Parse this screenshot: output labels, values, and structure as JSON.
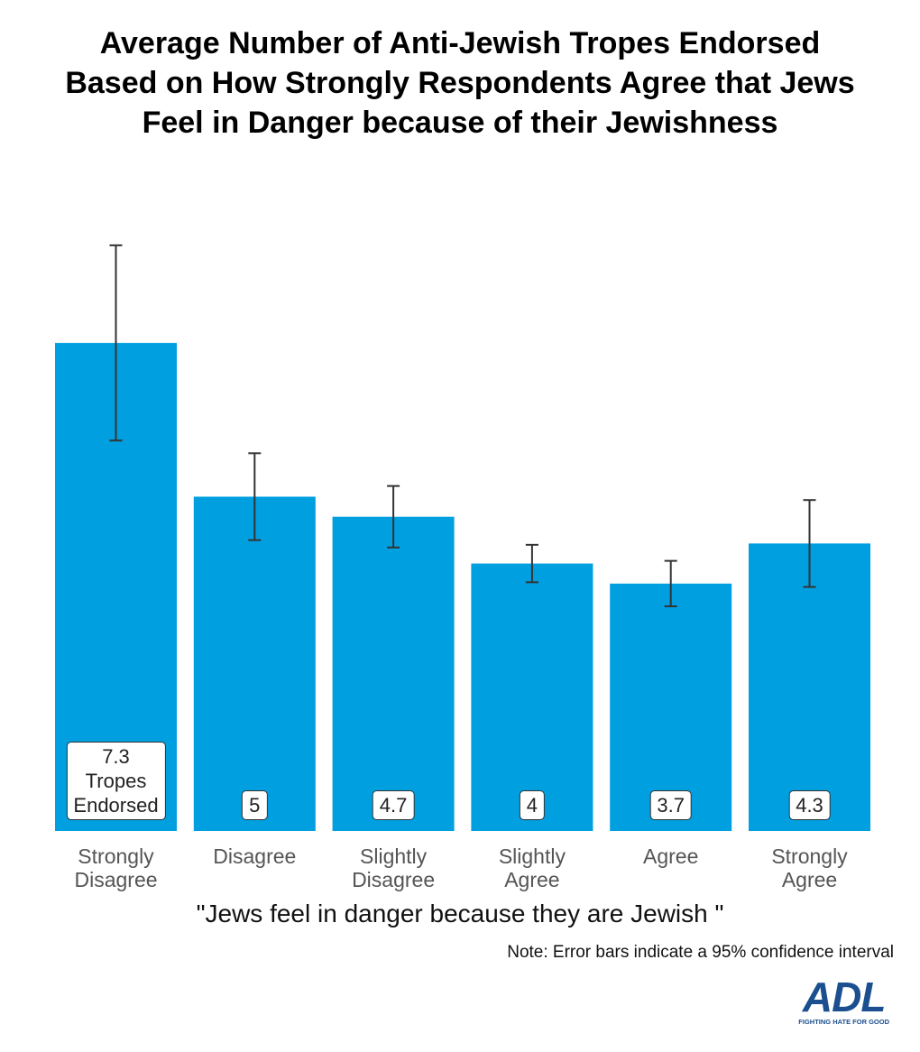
{
  "chart_data": {
    "type": "bar",
    "title": "Average Number of Anti-Jewish Tropes Endorsed Based on How Strongly Respondents Agree that Jews Feel in Danger because of their Jewishness",
    "categories": [
      "Strongly Disagree",
      "Disagree",
      "Slightly Disagree",
      "Slightly Agree",
      "Agree",
      "Strongly Agree"
    ],
    "values": [
      7.3,
      5,
      4.7,
      4,
      3.7,
      4.3
    ],
    "value_labels": [
      "7.3 Tropes Endorsed",
      "5",
      "4.7",
      "4",
      "3.7",
      "4.3"
    ],
    "errors": [
      1.46,
      0.65,
      0.46,
      0.28,
      0.34,
      0.65
    ],
    "color": "#009fe0",
    "ylim": [
      0,
      10
    ],
    "x_label": "\"Jews feel in danger because they are Jewish \"",
    "note": "Note: Error bars indicate a 95% confidence interval"
  },
  "logo": {
    "name": "ADL",
    "tagline": "FIGHTING HATE FOR GOOD"
  }
}
